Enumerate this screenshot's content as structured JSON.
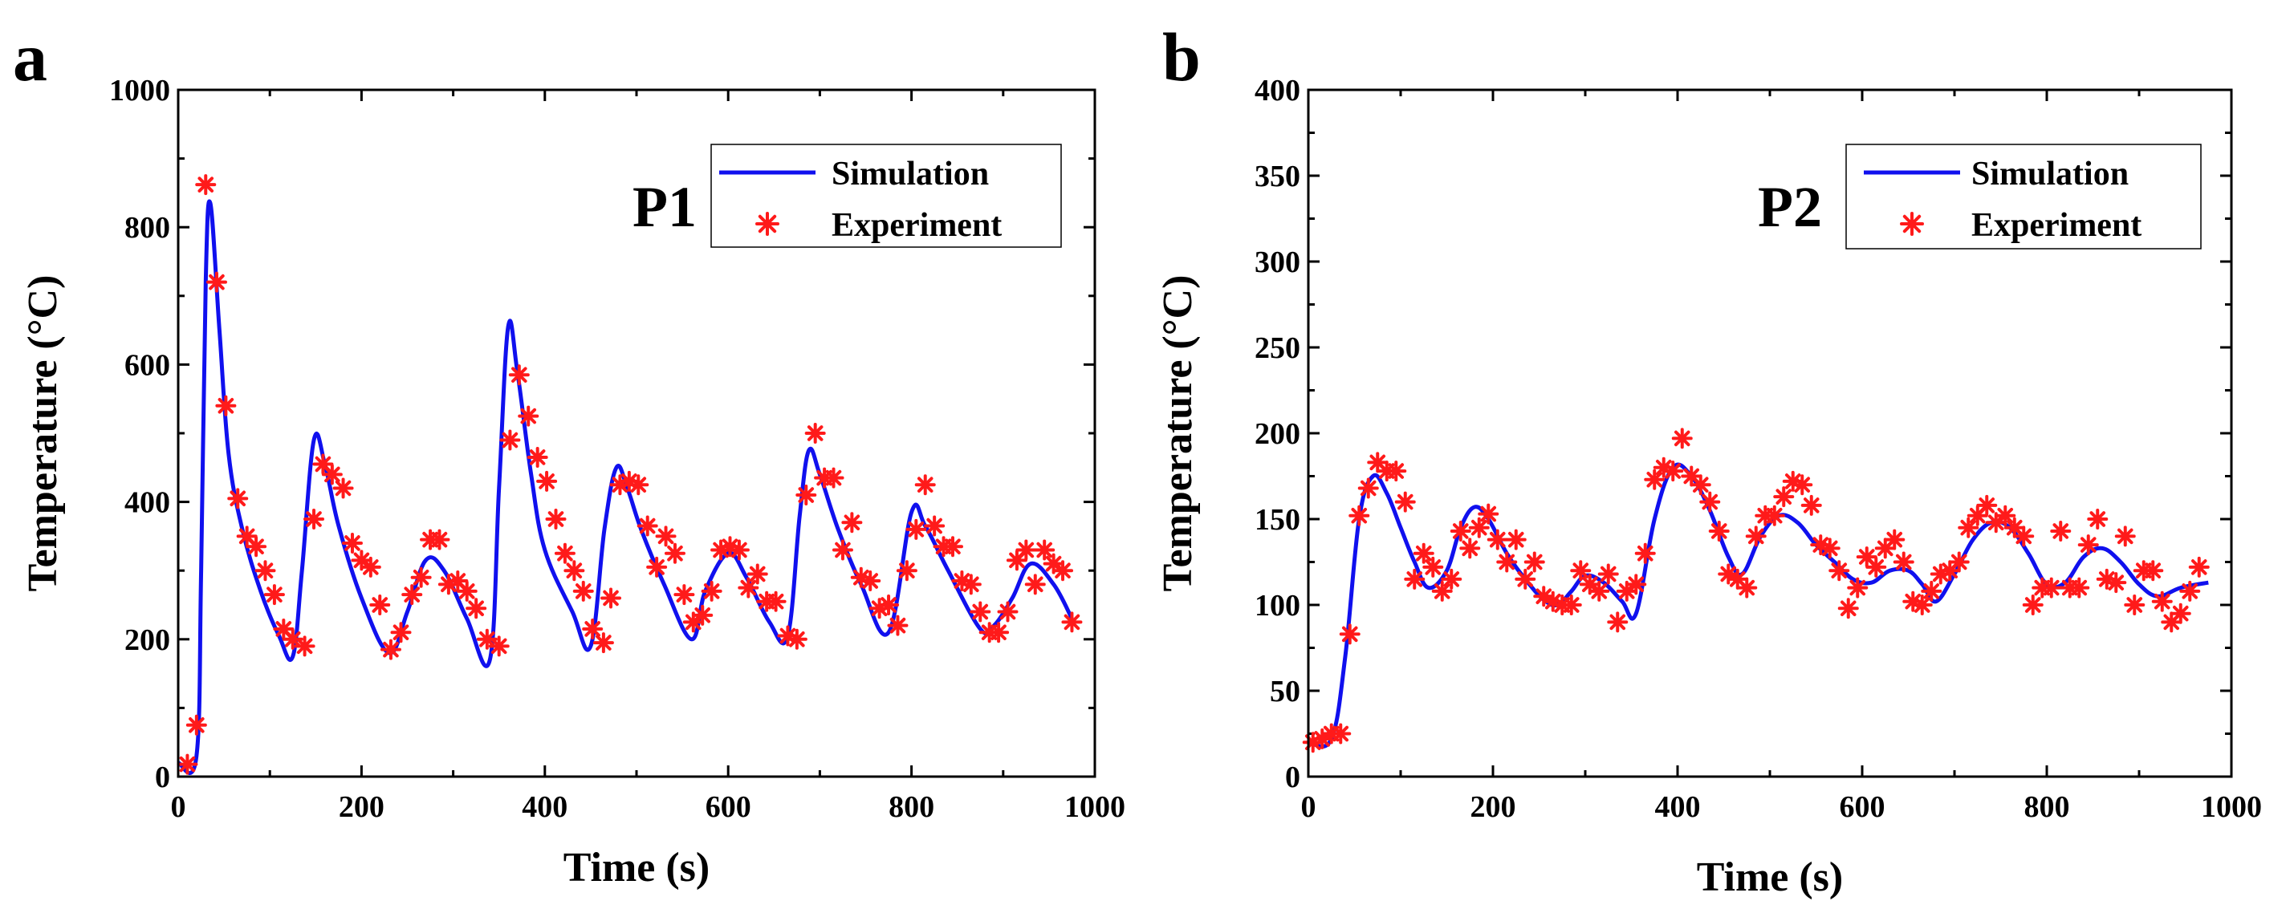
{
  "chart_data": [
    {
      "type": "line",
      "panel_label": "a",
      "title": "P1",
      "xlabel": "Time (s)",
      "ylabel": "Temperature (°C)",
      "xlim": [
        0,
        1000
      ],
      "ylim": [
        0,
        1000
      ],
      "xticks": [
        0,
        200,
        400,
        600,
        800,
        1000
      ],
      "yticks": [
        0,
        200,
        400,
        600,
        800,
        1000
      ],
      "x_minor_step": 100,
      "y_minor_step": 100,
      "legend": [
        "Simulation",
        "Experiment"
      ],
      "legend_position": "top-right",
      "colors": {
        "simulation": "#1010ee",
        "experiment": "#ff1a1a"
      },
      "series": [
        {
          "name": "Simulation",
          "style": "line",
          "x": [
            0,
            20,
            25,
            30,
            35,
            45,
            55,
            70,
            90,
            110,
            125,
            135,
            148,
            160,
            175,
            200,
            230,
            250,
            270,
            290,
            315,
            340,
            350,
            360,
            370,
            385,
            400,
            430,
            450,
            465,
            478,
            490,
            505,
            530,
            560,
            575,
            600,
            620,
            645,
            665,
            678,
            688,
            700,
            720,
            745,
            775,
            800,
            815,
            840,
            875,
            890,
            910,
            930,
            955,
            975
          ],
          "y": [
            20,
            30,
            300,
            720,
            835,
            650,
            470,
            360,
            270,
            205,
            175,
            300,
            490,
            455,
            365,
            260,
            180,
            240,
            315,
            300,
            230,
            170,
            420,
            655,
            590,
            440,
            330,
            240,
            190,
            360,
            450,
            420,
            360,
            280,
            200,
            270,
            325,
            290,
            225,
            205,
            380,
            475,
            440,
            360,
            280,
            210,
            385,
            365,
            300,
            215,
            220,
            260,
            310,
            280,
            230
          ]
        },
        {
          "name": "Experiment",
          "style": "markers",
          "x": [
            10,
            20,
            30,
            42,
            52,
            65,
            75,
            85,
            95,
            105,
            115,
            125,
            138,
            148,
            158,
            168,
            180,
            190,
            200,
            210,
            220,
            232,
            243,
            255,
            265,
            275,
            285,
            295,
            305,
            315,
            325,
            337,
            350,
            362,
            372,
            382,
            392,
            402,
            412,
            422,
            432,
            442,
            452,
            464,
            472,
            482,
            492,
            502,
            512,
            522,
            532,
            542,
            552,
            562,
            572,
            582,
            592,
            602,
            612,
            622,
            632,
            642,
            652,
            665,
            675,
            685,
            695,
            705,
            715,
            725,
            735,
            745,
            755,
            765,
            775,
            785,
            795,
            805,
            815,
            825,
            835,
            845,
            855,
            865,
            875,
            885,
            895,
            905,
            915,
            925,
            935,
            945,
            955,
            965,
            975
          ],
          "y": [
            18,
            75,
            862,
            720,
            540,
            405,
            350,
            335,
            300,
            265,
            215,
            200,
            190,
            375,
            455,
            440,
            420,
            340,
            315,
            305,
            250,
            185,
            210,
            265,
            290,
            345,
            345,
            280,
            285,
            270,
            245,
            200,
            190,
            490,
            585,
            525,
            465,
            430,
            375,
            325,
            300,
            270,
            215,
            195,
            260,
            425,
            430,
            425,
            365,
            305,
            350,
            325,
            265,
            225,
            235,
            270,
            330,
            335,
            330,
            275,
            295,
            255,
            255,
            205,
            200,
            410,
            500,
            435,
            435,
            330,
            370,
            290,
            285,
            245,
            250,
            220,
            300,
            360,
            425,
            365,
            335,
            335,
            285,
            280,
            240,
            210,
            210,
            240,
            315,
            330,
            280,
            330,
            310,
            300,
            225
          ]
        }
      ]
    },
    {
      "type": "line",
      "panel_label": "b",
      "title": "P2",
      "xlabel": "Time (s)",
      "ylabel": "Temperature (°C)",
      "xlim": [
        0,
        1000
      ],
      "ylim": [
        0,
        400
      ],
      "xticks": [
        0,
        200,
        400,
        600,
        800,
        1000
      ],
      "yticks": [
        0,
        50,
        100,
        150,
        200,
        250,
        300,
        350,
        400
      ],
      "x_minor_step": 100,
      "y_minor_step": 25,
      "legend": [
        "Simulation",
        "Experiment"
      ],
      "legend_position": "top-right",
      "colors": {
        "simulation": "#1010ee",
        "experiment": "#ff1a1a"
      },
      "series": [
        {
          "name": "Simulation",
          "style": "line",
          "x": [
            0,
            25,
            40,
            55,
            70,
            85,
            100,
            115,
            130,
            150,
            165,
            180,
            195,
            215,
            235,
            255,
            270,
            285,
            300,
            320,
            340,
            355,
            375,
            395,
            415,
            435,
            455,
            470,
            490,
            510,
            530,
            550,
            570,
            590,
            610,
            630,
            650,
            665,
            680,
            700,
            720,
            740,
            760,
            780,
            800,
            820,
            840,
            860,
            880,
            900,
            920,
            945,
            975
          ],
          "y": [
            20,
            22,
            70,
            150,
            175,
            165,
            145,
            125,
            110,
            120,
            145,
            157,
            150,
            130,
            115,
            103,
            100,
            108,
            117,
            113,
            102,
            95,
            150,
            180,
            175,
            155,
            128,
            118,
            140,
            152,
            148,
            135,
            125,
            115,
            113,
            120,
            120,
            112,
            102,
            118,
            138,
            148,
            145,
            130,
            112,
            113,
            128,
            133,
            125,
            112,
            105,
            110,
            113
          ]
        },
        {
          "name": "Experiment",
          "style": "markers",
          "x": [
            5,
            15,
            25,
            35,
            45,
            55,
            65,
            75,
            85,
            95,
            105,
            115,
            125,
            135,
            145,
            155,
            165,
            175,
            185,
            195,
            205,
            215,
            225,
            235,
            245,
            255,
            265,
            275,
            285,
            295,
            305,
            315,
            325,
            335,
            345,
            355,
            365,
            375,
            385,
            395,
            405,
            415,
            425,
            435,
            445,
            455,
            465,
            475,
            485,
            495,
            505,
            515,
            525,
            535,
            545,
            555,
            565,
            575,
            585,
            595,
            605,
            615,
            625,
            635,
            645,
            655,
            665,
            675,
            685,
            695,
            705,
            715,
            725,
            735,
            745,
            755,
            765,
            775,
            785,
            795,
            805,
            815,
            825,
            835,
            845,
            855,
            865,
            875,
            885,
            895,
            905,
            915,
            925,
            935,
            945,
            955,
            965
          ],
          "y": [
            20,
            22,
            25,
            25,
            83,
            152,
            168,
            183,
            178,
            178,
            160,
            115,
            130,
            122,
            108,
            115,
            143,
            133,
            145,
            153,
            138,
            125,
            138,
            115,
            125,
            105,
            102,
            100,
            100,
            120,
            112,
            108,
            118,
            90,
            108,
            112,
            130,
            173,
            180,
            178,
            197,
            175,
            170,
            160,
            143,
            118,
            115,
            110,
            140,
            152,
            152,
            163,
            172,
            170,
            158,
            135,
            133,
            120,
            98,
            110,
            128,
            122,
            133,
            138,
            125,
            102,
            100,
            108,
            118,
            120,
            125,
            145,
            152,
            158,
            148,
            152,
            145,
            140,
            100,
            110,
            110,
            143,
            110,
            110,
            135,
            150,
            115,
            113,
            140,
            100,
            120,
            120,
            102,
            90,
            95,
            108,
            122
          ]
        }
      ]
    }
  ]
}
